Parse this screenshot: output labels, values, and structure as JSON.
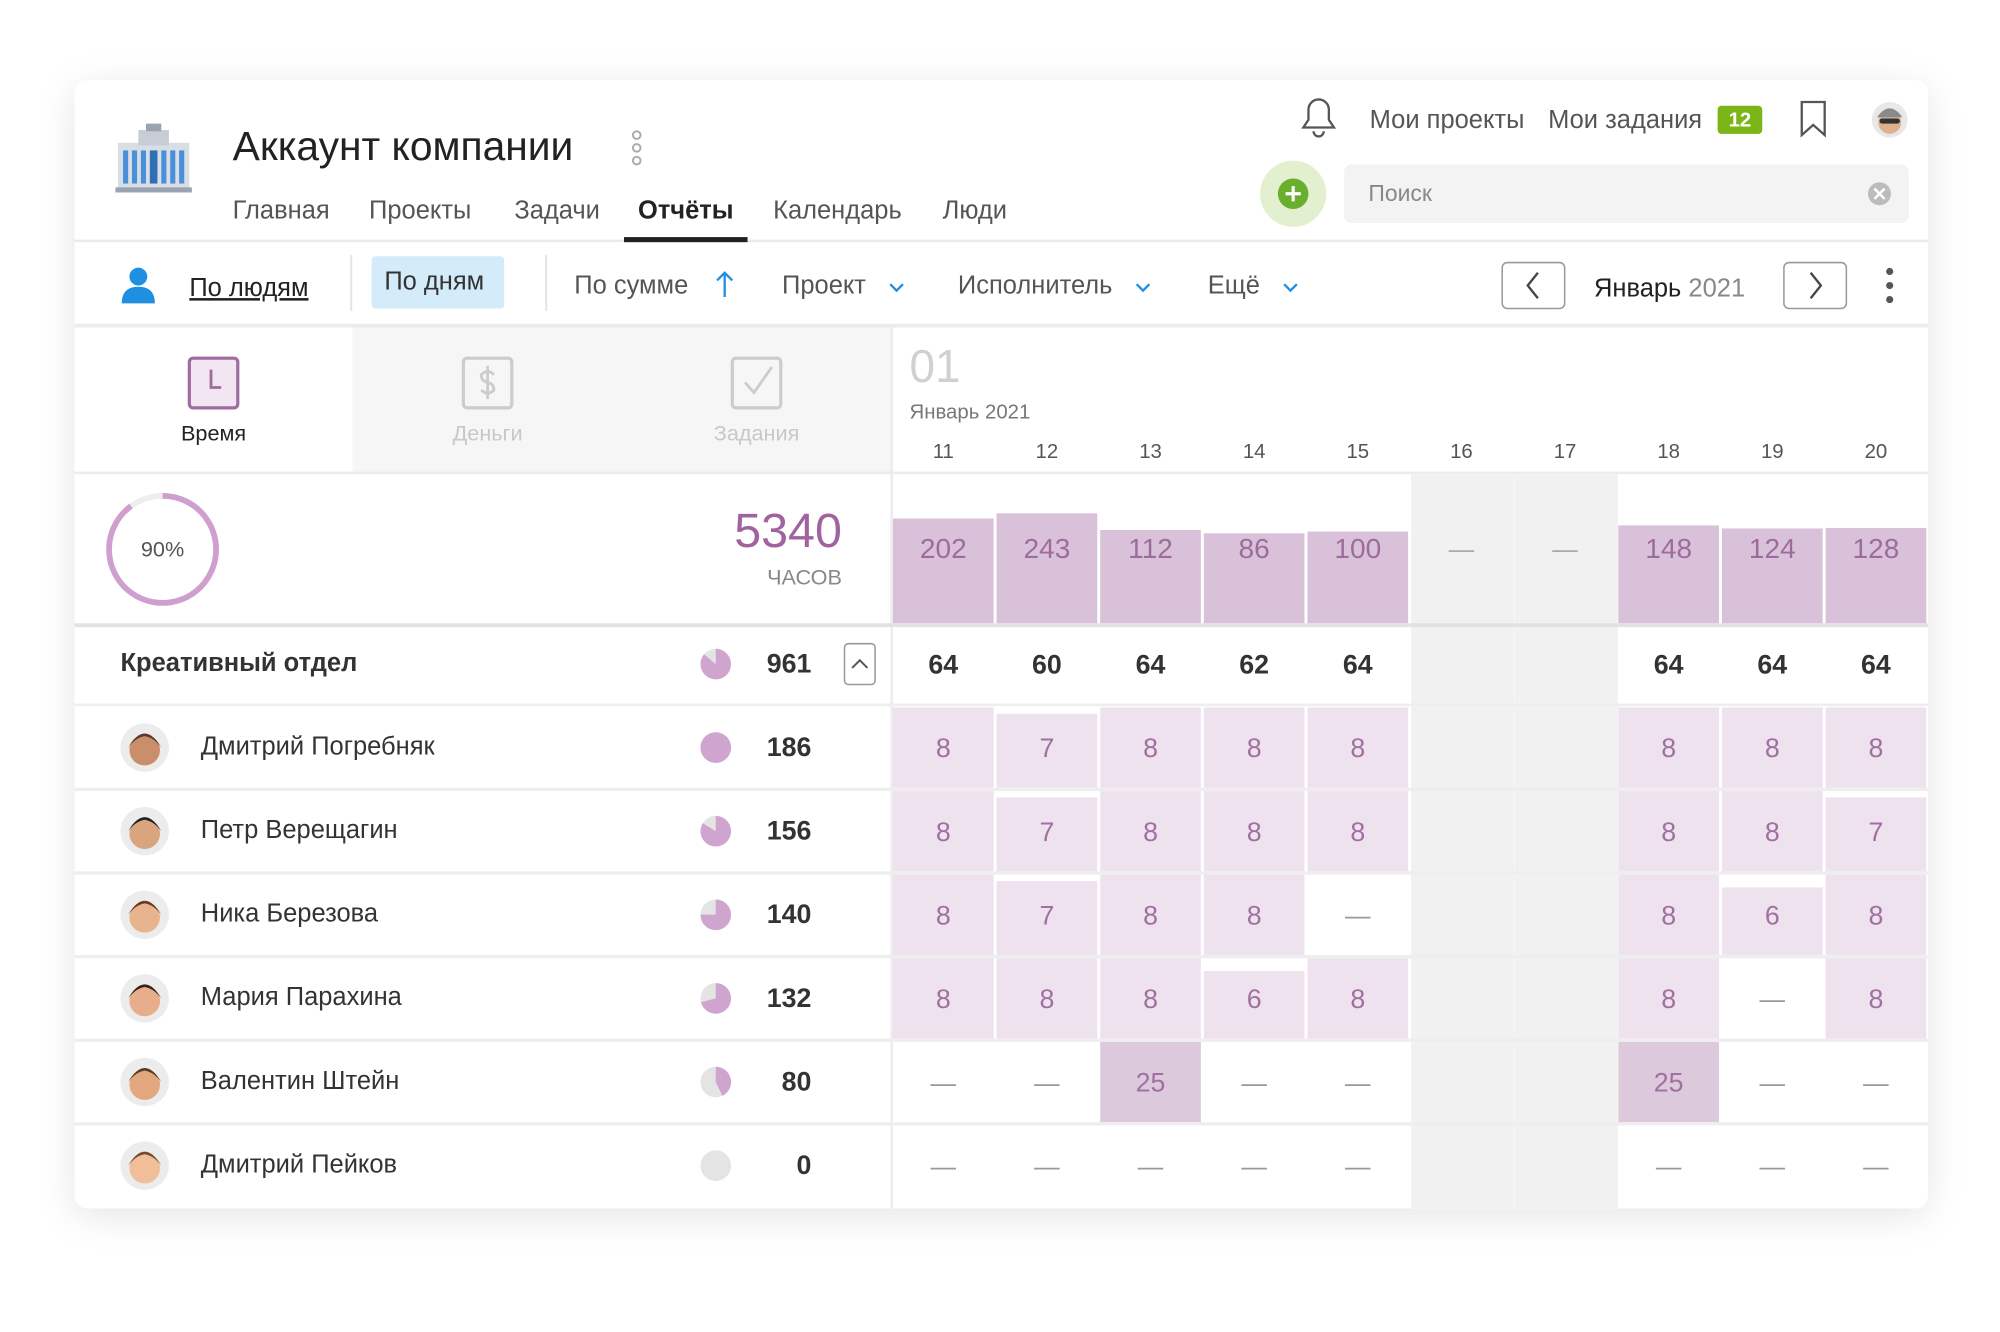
{
  "header": {
    "company": "Аккаунт компании",
    "nav": [
      "Главная",
      "Проекты",
      "Задачи",
      "Отчёты",
      "Календарь",
      "Люди"
    ],
    "active_nav": 3,
    "my_projects": "Мои проекты",
    "my_tasks": "Мои задания",
    "tasks_badge": "12",
    "search_placeholder": "Поиск"
  },
  "toolbar": {
    "by_people": "По людям",
    "by_days": "По дням",
    "by_sum": "По сумме",
    "filters": [
      "Проект",
      "Исполнитель",
      "Ещё"
    ],
    "period_month": "Январь",
    "period_year": "2021"
  },
  "tabs": [
    {
      "label": "Время",
      "active": true
    },
    {
      "label": "Деньги",
      "active": false
    },
    {
      "label": "Задания",
      "active": false
    }
  ],
  "report": {
    "week": "01",
    "month_label": "Январь 2021",
    "days": [
      {
        "label": "11",
        "weekend": false
      },
      {
        "label": "12",
        "weekend": false
      },
      {
        "label": "13",
        "weekend": false
      },
      {
        "label": "14",
        "weekend": false
      },
      {
        "label": "15",
        "weekend": false
      },
      {
        "label": "16",
        "weekend": true
      },
      {
        "label": "17",
        "weekend": true
      },
      {
        "label": "18",
        "weekend": false
      },
      {
        "label": "19",
        "weekend": false
      },
      {
        "label": "20",
        "weekend": false
      }
    ],
    "progress": {
      "value": 90,
      "label": "90%"
    },
    "total": 5340,
    "total_unit": "ЧАСОВ",
    "empty_label": "—",
    "daily_totals": [
      202,
      243,
      112,
      86,
      100,
      null,
      null,
      148,
      124,
      128
    ],
    "group": {
      "name": "Креативный отдел",
      "total": 961,
      "values": [
        64,
        60,
        64,
        62,
        64,
        null,
        null,
        64,
        64,
        64
      ]
    },
    "people": [
      {
        "name": "Дмитрий Погребняк",
        "total": 186,
        "values": [
          8,
          7,
          8,
          8,
          8,
          null,
          null,
          8,
          8,
          8
        ]
      },
      {
        "name": "Петр Верещагин",
        "total": 156,
        "values": [
          8,
          7,
          8,
          8,
          8,
          null,
          null,
          8,
          8,
          7
        ]
      },
      {
        "name": "Ника Березова",
        "total": 140,
        "values": [
          8,
          7,
          8,
          8,
          null,
          null,
          null,
          8,
          6,
          8
        ]
      },
      {
        "name": "Мария Парахина",
        "total": 132,
        "values": [
          8,
          8,
          8,
          6,
          8,
          null,
          null,
          8,
          null,
          8
        ]
      },
      {
        "name": "Валентин Штейн",
        "total": 80,
        "values": [
          null,
          null,
          25,
          null,
          null,
          null,
          null,
          25,
          null,
          null
        ]
      },
      {
        "name": "Дмитрий Пейков",
        "total": 0,
        "values": [
          null,
          null,
          null,
          null,
          null,
          null,
          null,
          null,
          null,
          null
        ]
      }
    ]
  }
}
